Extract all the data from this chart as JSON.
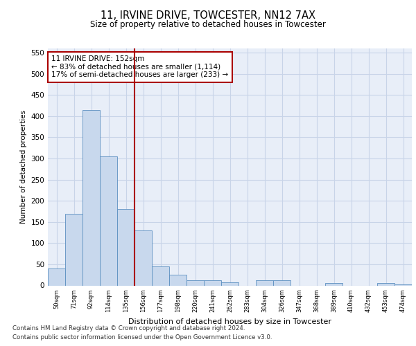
{
  "title1": "11, IRVINE DRIVE, TOWCESTER, NN12 7AX",
  "title2": "Size of property relative to detached houses in Towcester",
  "xlabel": "Distribution of detached houses by size in Towcester",
  "ylabel": "Number of detached properties",
  "categories": [
    "50sqm",
    "71sqm",
    "92sqm",
    "114sqm",
    "135sqm",
    "156sqm",
    "177sqm",
    "198sqm",
    "220sqm",
    "241sqm",
    "262sqm",
    "283sqm",
    "304sqm",
    "326sqm",
    "347sqm",
    "368sqm",
    "389sqm",
    "410sqm",
    "432sqm",
    "453sqm",
    "474sqm"
  ],
  "values": [
    40,
    170,
    415,
    305,
    180,
    130,
    45,
    25,
    13,
    13,
    8,
    0,
    12,
    13,
    0,
    0,
    5,
    0,
    0,
    5,
    3
  ],
  "bar_color": "#c8d8ed",
  "bar_edge_color": "#5b8fc0",
  "grid_color": "#c8d4e8",
  "background_color": "#e8eef8",
  "red_line_x": 4.5,
  "red_line_color": "#aa0000",
  "annotation_text": "11 IRVINE DRIVE: 152sqm\n← 83% of detached houses are smaller (1,114)\n17% of semi-detached houses are larger (233) →",
  "annotation_box_color": "#ffffff",
  "annotation_box_edge": "#aa0000",
  "footer1": "Contains HM Land Registry data © Crown copyright and database right 2024.",
  "footer2": "Contains public sector information licensed under the Open Government Licence v3.0.",
  "ylim": [
    0,
    560
  ],
  "yticks": [
    0,
    50,
    100,
    150,
    200,
    250,
    300,
    350,
    400,
    450,
    500,
    550
  ]
}
